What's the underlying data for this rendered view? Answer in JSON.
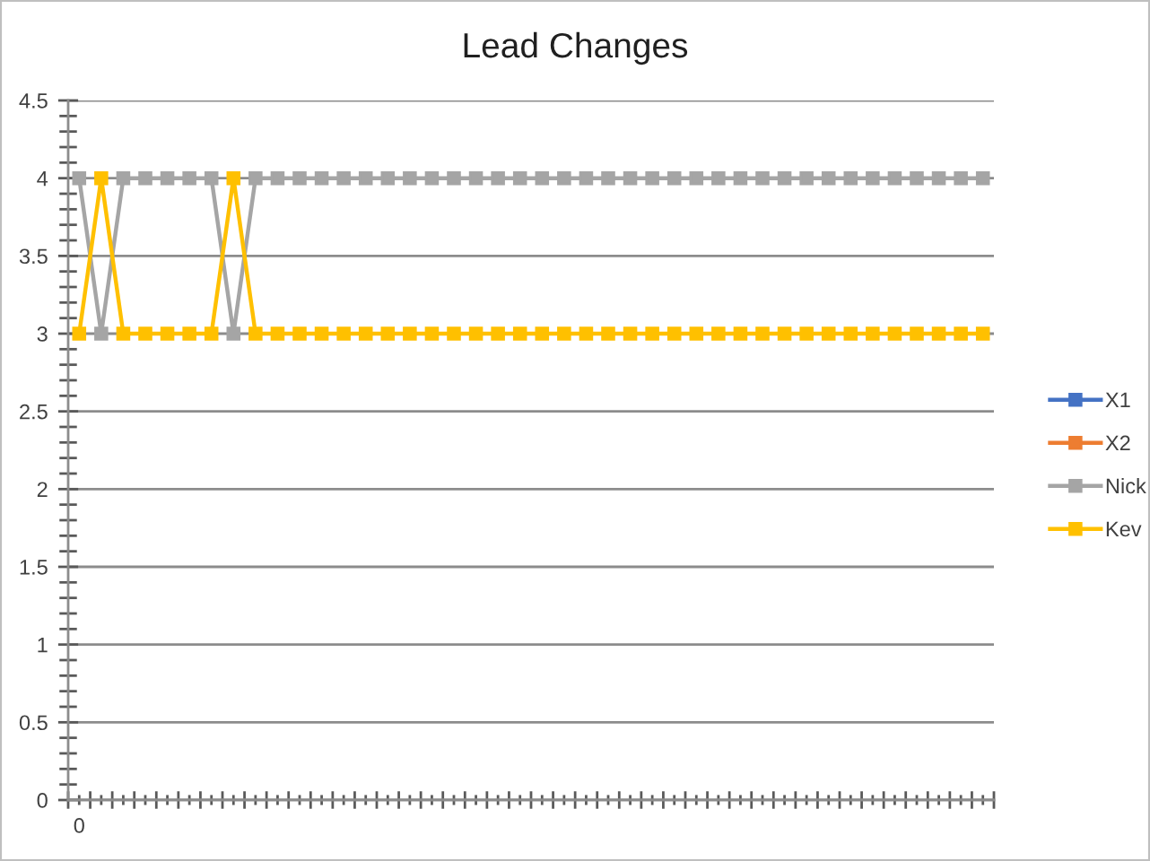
{
  "chart_data": {
    "type": "line",
    "title": "Lead Changes",
    "categories": [
      "0",
      null,
      null,
      null,
      null,
      null,
      null,
      null,
      null,
      null,
      null,
      null,
      null,
      null,
      null,
      null,
      null,
      null,
      null,
      null,
      null,
      null,
      null,
      null,
      null,
      null,
      null,
      null,
      null,
      null,
      null,
      null,
      null,
      null,
      null,
      null,
      null,
      null,
      null,
      null,
      null,
      null
    ],
    "series": [
      {
        "name": "X1",
        "color": "#4472c4",
        "values": [
          null,
          null,
          null,
          null,
          null,
          null,
          null,
          null,
          null,
          null,
          null,
          null,
          null,
          null,
          null,
          null,
          null,
          null,
          null,
          null,
          null,
          null,
          null,
          null,
          null,
          null,
          null,
          null,
          null,
          null,
          null,
          null,
          null,
          null,
          null,
          null,
          null,
          null,
          null,
          null,
          null,
          null
        ]
      },
      {
        "name": "X2",
        "color": "#ed7d31",
        "values": [
          null,
          null,
          null,
          null,
          null,
          null,
          null,
          null,
          null,
          null,
          null,
          null,
          null,
          null,
          null,
          null,
          null,
          null,
          null,
          null,
          null,
          null,
          null,
          null,
          null,
          null,
          null,
          null,
          null,
          null,
          null,
          null,
          null,
          null,
          null,
          null,
          null,
          null,
          null,
          null,
          null,
          null
        ]
      },
      {
        "name": "Nick",
        "color": "#a5a5a5",
        "values": [
          4,
          3,
          4,
          4,
          4,
          4,
          4,
          3,
          4,
          4,
          4,
          4,
          4,
          4,
          4,
          4,
          4,
          4,
          4,
          4,
          4,
          4,
          4,
          4,
          4,
          4,
          4,
          4,
          4,
          4,
          4,
          4,
          4,
          4,
          4,
          4,
          4,
          4,
          4,
          4,
          4,
          4
        ]
      },
      {
        "name": "Kev",
        "color": "#ffc000",
        "values": [
          3,
          4,
          3,
          3,
          3,
          3,
          3,
          4,
          3,
          3,
          3,
          3,
          3,
          3,
          3,
          3,
          3,
          3,
          3,
          3,
          3,
          3,
          3,
          3,
          3,
          3,
          3,
          3,
          3,
          3,
          3,
          3,
          3,
          3,
          3,
          3,
          3,
          3,
          3,
          3,
          3,
          3
        ]
      }
    ],
    "ylim": [
      0,
      4.5
    ],
    "yticks": [
      0,
      {
        "value": 0.1,
        "label": null
      },
      {
        "value": 0.2,
        "label": null
      },
      {
        "value": 0.3,
        "label": null
      },
      {
        "value": 0.4,
        "label": null
      },
      0.5,
      {
        "value": 0.6,
        "label": null
      },
      {
        "value": 0.7,
        "label": null
      },
      {
        "value": 0.8,
        "label": null
      },
      {
        "value": 0.9,
        "label": null
      },
      1,
      {
        "value": 1.1,
        "label": null
      },
      {
        "value": 1.2,
        "label": null
      },
      {
        "value": 1.3,
        "label": null
      },
      {
        "value": 1.4,
        "label": null
      },
      1.5,
      {
        "value": 1.6,
        "label": null
      },
      {
        "value": 1.7,
        "label": null
      },
      {
        "value": 1.8,
        "label": null
      },
      {
        "value": 1.9,
        "label": null
      },
      2,
      {
        "value": 2.1,
        "label": null
      },
      {
        "value": 2.2,
        "label": null
      },
      {
        "value": 2.3,
        "label": null
      },
      {
        "value": 2.4,
        "label": null
      },
      2.5,
      {
        "value": 2.6,
        "label": null
      },
      {
        "value": 2.7,
        "label": null
      },
      {
        "value": 2.8,
        "label": null
      },
      {
        "value": 2.9,
        "label": null
      },
      3,
      {
        "value": 3.1,
        "label": null
      },
      {
        "value": 3.2,
        "label": null
      },
      {
        "value": 3.3,
        "label": null
      },
      {
        "value": 3.4,
        "label": null
      },
      3.5,
      {
        "value": 3.6,
        "label": null
      },
      {
        "value": 3.7,
        "label": null
      },
      {
        "value": 3.8,
        "label": null
      },
      {
        "value": 3.9,
        "label": null
      },
      4,
      {
        "value": 4.1,
        "label": null
      },
      {
        "value": 4.2,
        "label": null
      },
      {
        "value": 4.3,
        "label": null
      },
      {
        "value": 4.4,
        "label": null
      },
      4.5
    ],
    "grid": "y",
    "legend": "right",
    "marker": "square",
    "line_style": "solid"
  }
}
